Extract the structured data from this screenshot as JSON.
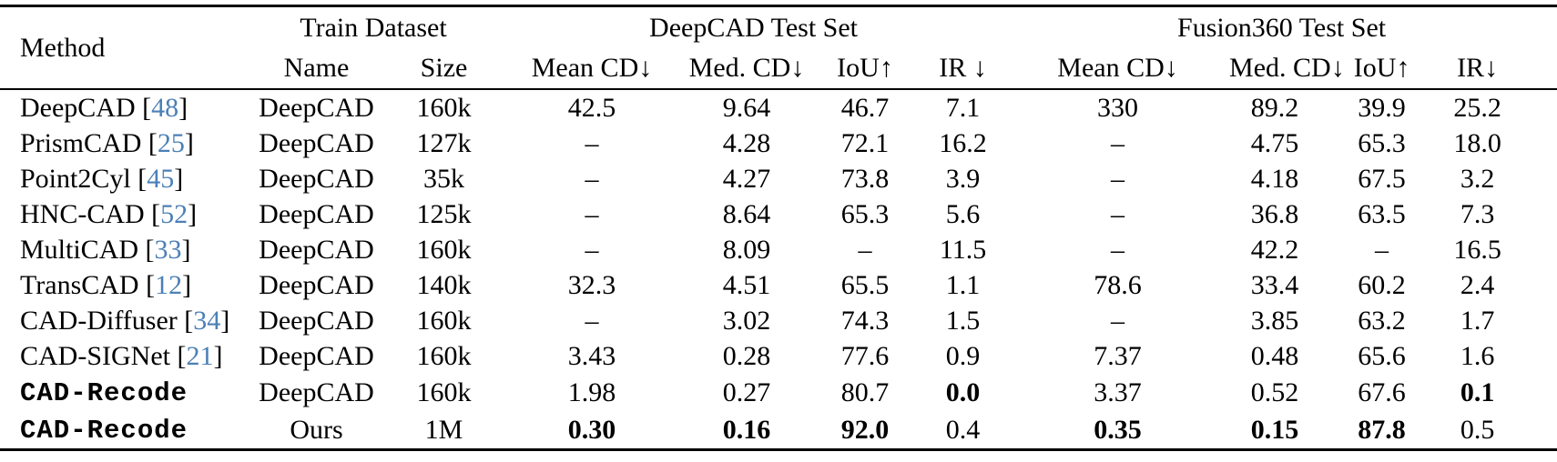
{
  "colors": {
    "text": "#000000",
    "rule": "#000000",
    "citation_link": "#4c80b6",
    "background": "#ffffff"
  },
  "table": {
    "header": {
      "method": "Method",
      "train_dataset": "Train Dataset",
      "deepcad_test": "DeepCAD Test Set",
      "fusion360_test": "Fusion360 Test Set",
      "sub": [
        "Name",
        "Size",
        "Mean CD↓",
        "Med. CD↓",
        "IoU↑",
        "IR ↓",
        "Mean CD↓",
        "Med. CD↓",
        "IoU↑",
        "IR↓"
      ]
    },
    "rows": [
      {
        "method": "DeepCAD",
        "cite": "48",
        "mono": false,
        "train_name": "DeepCAD",
        "train_size": "160k",
        "cells": [
          {
            "v": "42.5"
          },
          {
            "v": "9.64"
          },
          {
            "v": "46.7"
          },
          {
            "v": "7.1"
          },
          {
            "v": "330"
          },
          {
            "v": "89.2"
          },
          {
            "v": "39.9"
          },
          {
            "v": "25.2"
          }
        ]
      },
      {
        "method": "PrismCAD",
        "cite": "25",
        "mono": false,
        "train_name": "DeepCAD",
        "train_size": "127k",
        "cells": [
          {
            "v": "–"
          },
          {
            "v": "4.28"
          },
          {
            "v": "72.1"
          },
          {
            "v": "16.2"
          },
          {
            "v": "–"
          },
          {
            "v": "4.75"
          },
          {
            "v": "65.3"
          },
          {
            "v": "18.0"
          }
        ]
      },
      {
        "method": "Point2Cyl",
        "cite": "45",
        "mono": false,
        "train_name": "DeepCAD",
        "train_size": "35k",
        "cells": [
          {
            "v": "–"
          },
          {
            "v": "4.27"
          },
          {
            "v": "73.8"
          },
          {
            "v": "3.9"
          },
          {
            "v": "–"
          },
          {
            "v": "4.18"
          },
          {
            "v": "67.5"
          },
          {
            "v": "3.2"
          }
        ]
      },
      {
        "method": "HNC-CAD",
        "cite": "52",
        "mono": false,
        "train_name": "DeepCAD",
        "train_size": "125k",
        "cells": [
          {
            "v": "–"
          },
          {
            "v": "8.64"
          },
          {
            "v": "65.3"
          },
          {
            "v": "5.6"
          },
          {
            "v": "–"
          },
          {
            "v": "36.8"
          },
          {
            "v": "63.5"
          },
          {
            "v": "7.3"
          }
        ]
      },
      {
        "method": "MultiCAD",
        "cite": "33",
        "mono": false,
        "train_name": "DeepCAD",
        "train_size": "160k",
        "cells": [
          {
            "v": "–"
          },
          {
            "v": "8.09"
          },
          {
            "v": "–"
          },
          {
            "v": "11.5"
          },
          {
            "v": "–"
          },
          {
            "v": "42.2"
          },
          {
            "v": "–"
          },
          {
            "v": "16.5"
          }
        ]
      },
      {
        "method": "TransCAD",
        "cite": "12",
        "mono": false,
        "train_name": "DeepCAD",
        "train_size": "140k",
        "cells": [
          {
            "v": "32.3"
          },
          {
            "v": "4.51"
          },
          {
            "v": "65.5"
          },
          {
            "v": "1.1"
          },
          {
            "v": "78.6"
          },
          {
            "v": "33.4"
          },
          {
            "v": "60.2"
          },
          {
            "v": "2.4"
          }
        ]
      },
      {
        "method": "CAD-Diffuser",
        "cite": "34",
        "mono": false,
        "train_name": "DeepCAD",
        "train_size": "160k",
        "cells": [
          {
            "v": "–"
          },
          {
            "v": "3.02"
          },
          {
            "v": "74.3"
          },
          {
            "v": "1.5"
          },
          {
            "v": "–"
          },
          {
            "v": "3.85"
          },
          {
            "v": "63.2"
          },
          {
            "v": "1.7"
          }
        ]
      },
      {
        "method": "CAD-SIGNet",
        "cite": "21",
        "mono": false,
        "train_name": "DeepCAD",
        "train_size": "160k",
        "cells": [
          {
            "v": "3.43"
          },
          {
            "v": "0.28"
          },
          {
            "v": "77.6"
          },
          {
            "v": "0.9"
          },
          {
            "v": "7.37"
          },
          {
            "v": "0.48"
          },
          {
            "v": "65.6"
          },
          {
            "v": "1.6"
          }
        ]
      },
      {
        "method": "CAD-Recode",
        "cite": null,
        "mono": true,
        "train_name": "DeepCAD",
        "train_size": "160k",
        "cells": [
          {
            "v": "1.98"
          },
          {
            "v": "0.27"
          },
          {
            "v": "80.7"
          },
          {
            "v": "0.0",
            "b": true
          },
          {
            "v": "3.37"
          },
          {
            "v": "0.52"
          },
          {
            "v": "67.6"
          },
          {
            "v": "0.1",
            "b": true
          }
        ]
      },
      {
        "method": "CAD-Recode",
        "cite": null,
        "mono": true,
        "train_name": "Ours",
        "train_size": "1M",
        "cells": [
          {
            "v": "0.30",
            "b": true
          },
          {
            "v": "0.16",
            "b": true
          },
          {
            "v": "92.0",
            "b": true
          },
          {
            "v": "0.4"
          },
          {
            "v": "0.35",
            "b": true
          },
          {
            "v": "0.15",
            "b": true
          },
          {
            "v": "87.8",
            "b": true
          },
          {
            "v": "0.5"
          }
        ]
      }
    ]
  }
}
